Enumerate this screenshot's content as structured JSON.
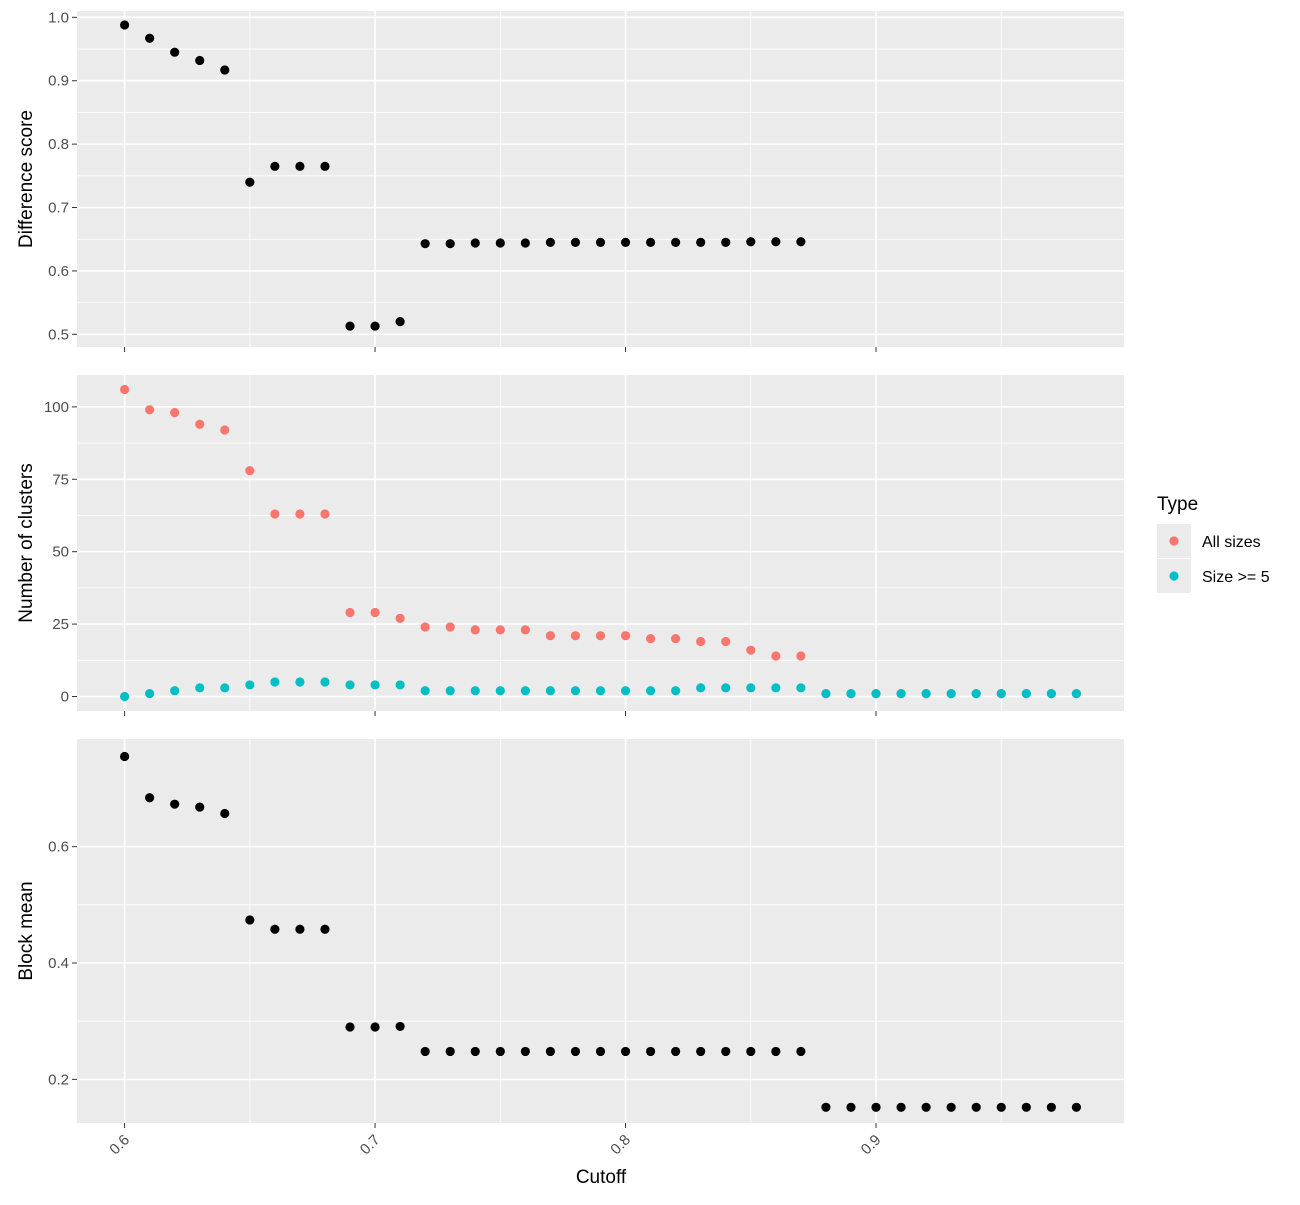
{
  "chart_data": {
    "type": "scatter",
    "xlabel": "Cutoff",
    "x_ticks": [
      0.6,
      0.7,
      0.8,
      0.9
    ],
    "xlim": [
      0.581,
      0.999
    ],
    "grid": true,
    "legend": {
      "title": "Type",
      "placement": "right",
      "entries": [
        {
          "label": "All sizes",
          "color": "#F8766D"
        },
        {
          "label": "Size >= 5",
          "color": "#00BFC4"
        }
      ]
    },
    "panels": [
      {
        "name": "difference-score",
        "ylabel": "Difference score",
        "ylim": [
          0.48,
          1.01
        ],
        "y_ticks": [
          0.5,
          0.6,
          0.7,
          0.8,
          0.9,
          1.0
        ],
        "y_tick_labels": [
          "0.5",
          "0.6",
          "0.7",
          "0.8",
          "0.9",
          "1.0"
        ],
        "series": [
          {
            "color": "#000000",
            "x": [
              0.6,
              0.61,
              0.62,
              0.63,
              0.64,
              0.65,
              0.66,
              0.67,
              0.68,
              0.69,
              0.7,
              0.71,
              0.72,
              0.73,
              0.74,
              0.75,
              0.76,
              0.77,
              0.78,
              0.79,
              0.8,
              0.81,
              0.82,
              0.83,
              0.84,
              0.85,
              0.86,
              0.87
            ],
            "y": [
              0.988,
              0.967,
              0.945,
              0.932,
              0.917,
              0.74,
              0.765,
              0.765,
              0.765,
              0.513,
              0.513,
              0.52,
              0.643,
              0.643,
              0.644,
              0.644,
              0.644,
              0.645,
              0.645,
              0.645,
              0.645,
              0.645,
              0.645,
              0.645,
              0.645,
              0.646,
              0.646,
              0.646
            ]
          }
        ]
      },
      {
        "name": "number-of-clusters",
        "ylabel": "Number of clusters",
        "ylim": [
          -5,
          111
        ],
        "y_ticks": [
          0,
          25,
          50,
          75,
          100
        ],
        "y_tick_labels": [
          "0",
          "25",
          "50",
          "75",
          "100"
        ],
        "series": [
          {
            "name": "All sizes",
            "color": "#F8766D",
            "x": [
              0.6,
              0.61,
              0.62,
              0.63,
              0.64,
              0.65,
              0.66,
              0.67,
              0.68,
              0.69,
              0.7,
              0.71,
              0.72,
              0.73,
              0.74,
              0.75,
              0.76,
              0.77,
              0.78,
              0.79,
              0.8,
              0.81,
              0.82,
              0.83,
              0.84,
              0.85,
              0.86,
              0.87,
              0.88,
              0.89,
              0.9,
              0.91,
              0.92,
              0.93,
              0.94,
              0.95,
              0.96,
              0.97,
              0.98
            ],
            "y": [
              106,
              99,
              98,
              94,
              92,
              78,
              63,
              63,
              63,
              29,
              29,
              27,
              24,
              24,
              23,
              23,
              23,
              21,
              21,
              21,
              21,
              20,
              20,
              19,
              19,
              16,
              14,
              14,
              1,
              1,
              1,
              1,
              1,
              1,
              1,
              1,
              1,
              1,
              1
            ]
          },
          {
            "name": "Size >= 5",
            "color": "#00BFC4",
            "x": [
              0.6,
              0.61,
              0.62,
              0.63,
              0.64,
              0.65,
              0.66,
              0.67,
              0.68,
              0.69,
              0.7,
              0.71,
              0.72,
              0.73,
              0.74,
              0.75,
              0.76,
              0.77,
              0.78,
              0.79,
              0.8,
              0.81,
              0.82,
              0.83,
              0.84,
              0.85,
              0.86,
              0.87,
              0.88,
              0.89,
              0.9,
              0.91,
              0.92,
              0.93,
              0.94,
              0.95,
              0.96,
              0.97,
              0.98
            ],
            "y": [
              0,
              1,
              2,
              3,
              3,
              4,
              5,
              5,
              5,
              4,
              4,
              4,
              2,
              2,
              2,
              2,
              2,
              2,
              2,
              2,
              2,
              2,
              2,
              3,
              3,
              3,
              3,
              3,
              1,
              1,
              1,
              1,
              1,
              1,
              1,
              1,
              1,
              1,
              1
            ]
          }
        ]
      },
      {
        "name": "block-mean",
        "ylabel": "Block mean",
        "ylim": [
          0.125,
          0.785
        ],
        "y_ticks": [
          0.2,
          0.4,
          0.6
        ],
        "y_tick_labels": [
          "0.2",
          "0.4",
          "0.6"
        ],
        "series": [
          {
            "color": "#000000",
            "x": [
              0.6,
              0.61,
              0.62,
              0.63,
              0.64,
              0.65,
              0.66,
              0.67,
              0.68,
              0.69,
              0.7,
              0.71,
              0.72,
              0.73,
              0.74,
              0.75,
              0.76,
              0.77,
              0.78,
              0.79,
              0.8,
              0.81,
              0.82,
              0.83,
              0.84,
              0.85,
              0.86,
              0.87,
              0.88,
              0.89,
              0.9,
              0.91,
              0.92,
              0.93,
              0.94,
              0.95,
              0.96,
              0.97,
              0.98
            ],
            "y": [
              0.755,
              0.684,
              0.673,
              0.668,
              0.657,
              0.474,
              0.458,
              0.458,
              0.458,
              0.29,
              0.29,
              0.291,
              0.248,
              0.248,
              0.248,
              0.248,
              0.248,
              0.248,
              0.248,
              0.248,
              0.248,
              0.248,
              0.248,
              0.248,
              0.248,
              0.248,
              0.248,
              0.248,
              0.152,
              0.152,
              0.152,
              0.152,
              0.152,
              0.152,
              0.152,
              0.152,
              0.152,
              0.152,
              0.152
            ]
          }
        ]
      }
    ]
  }
}
